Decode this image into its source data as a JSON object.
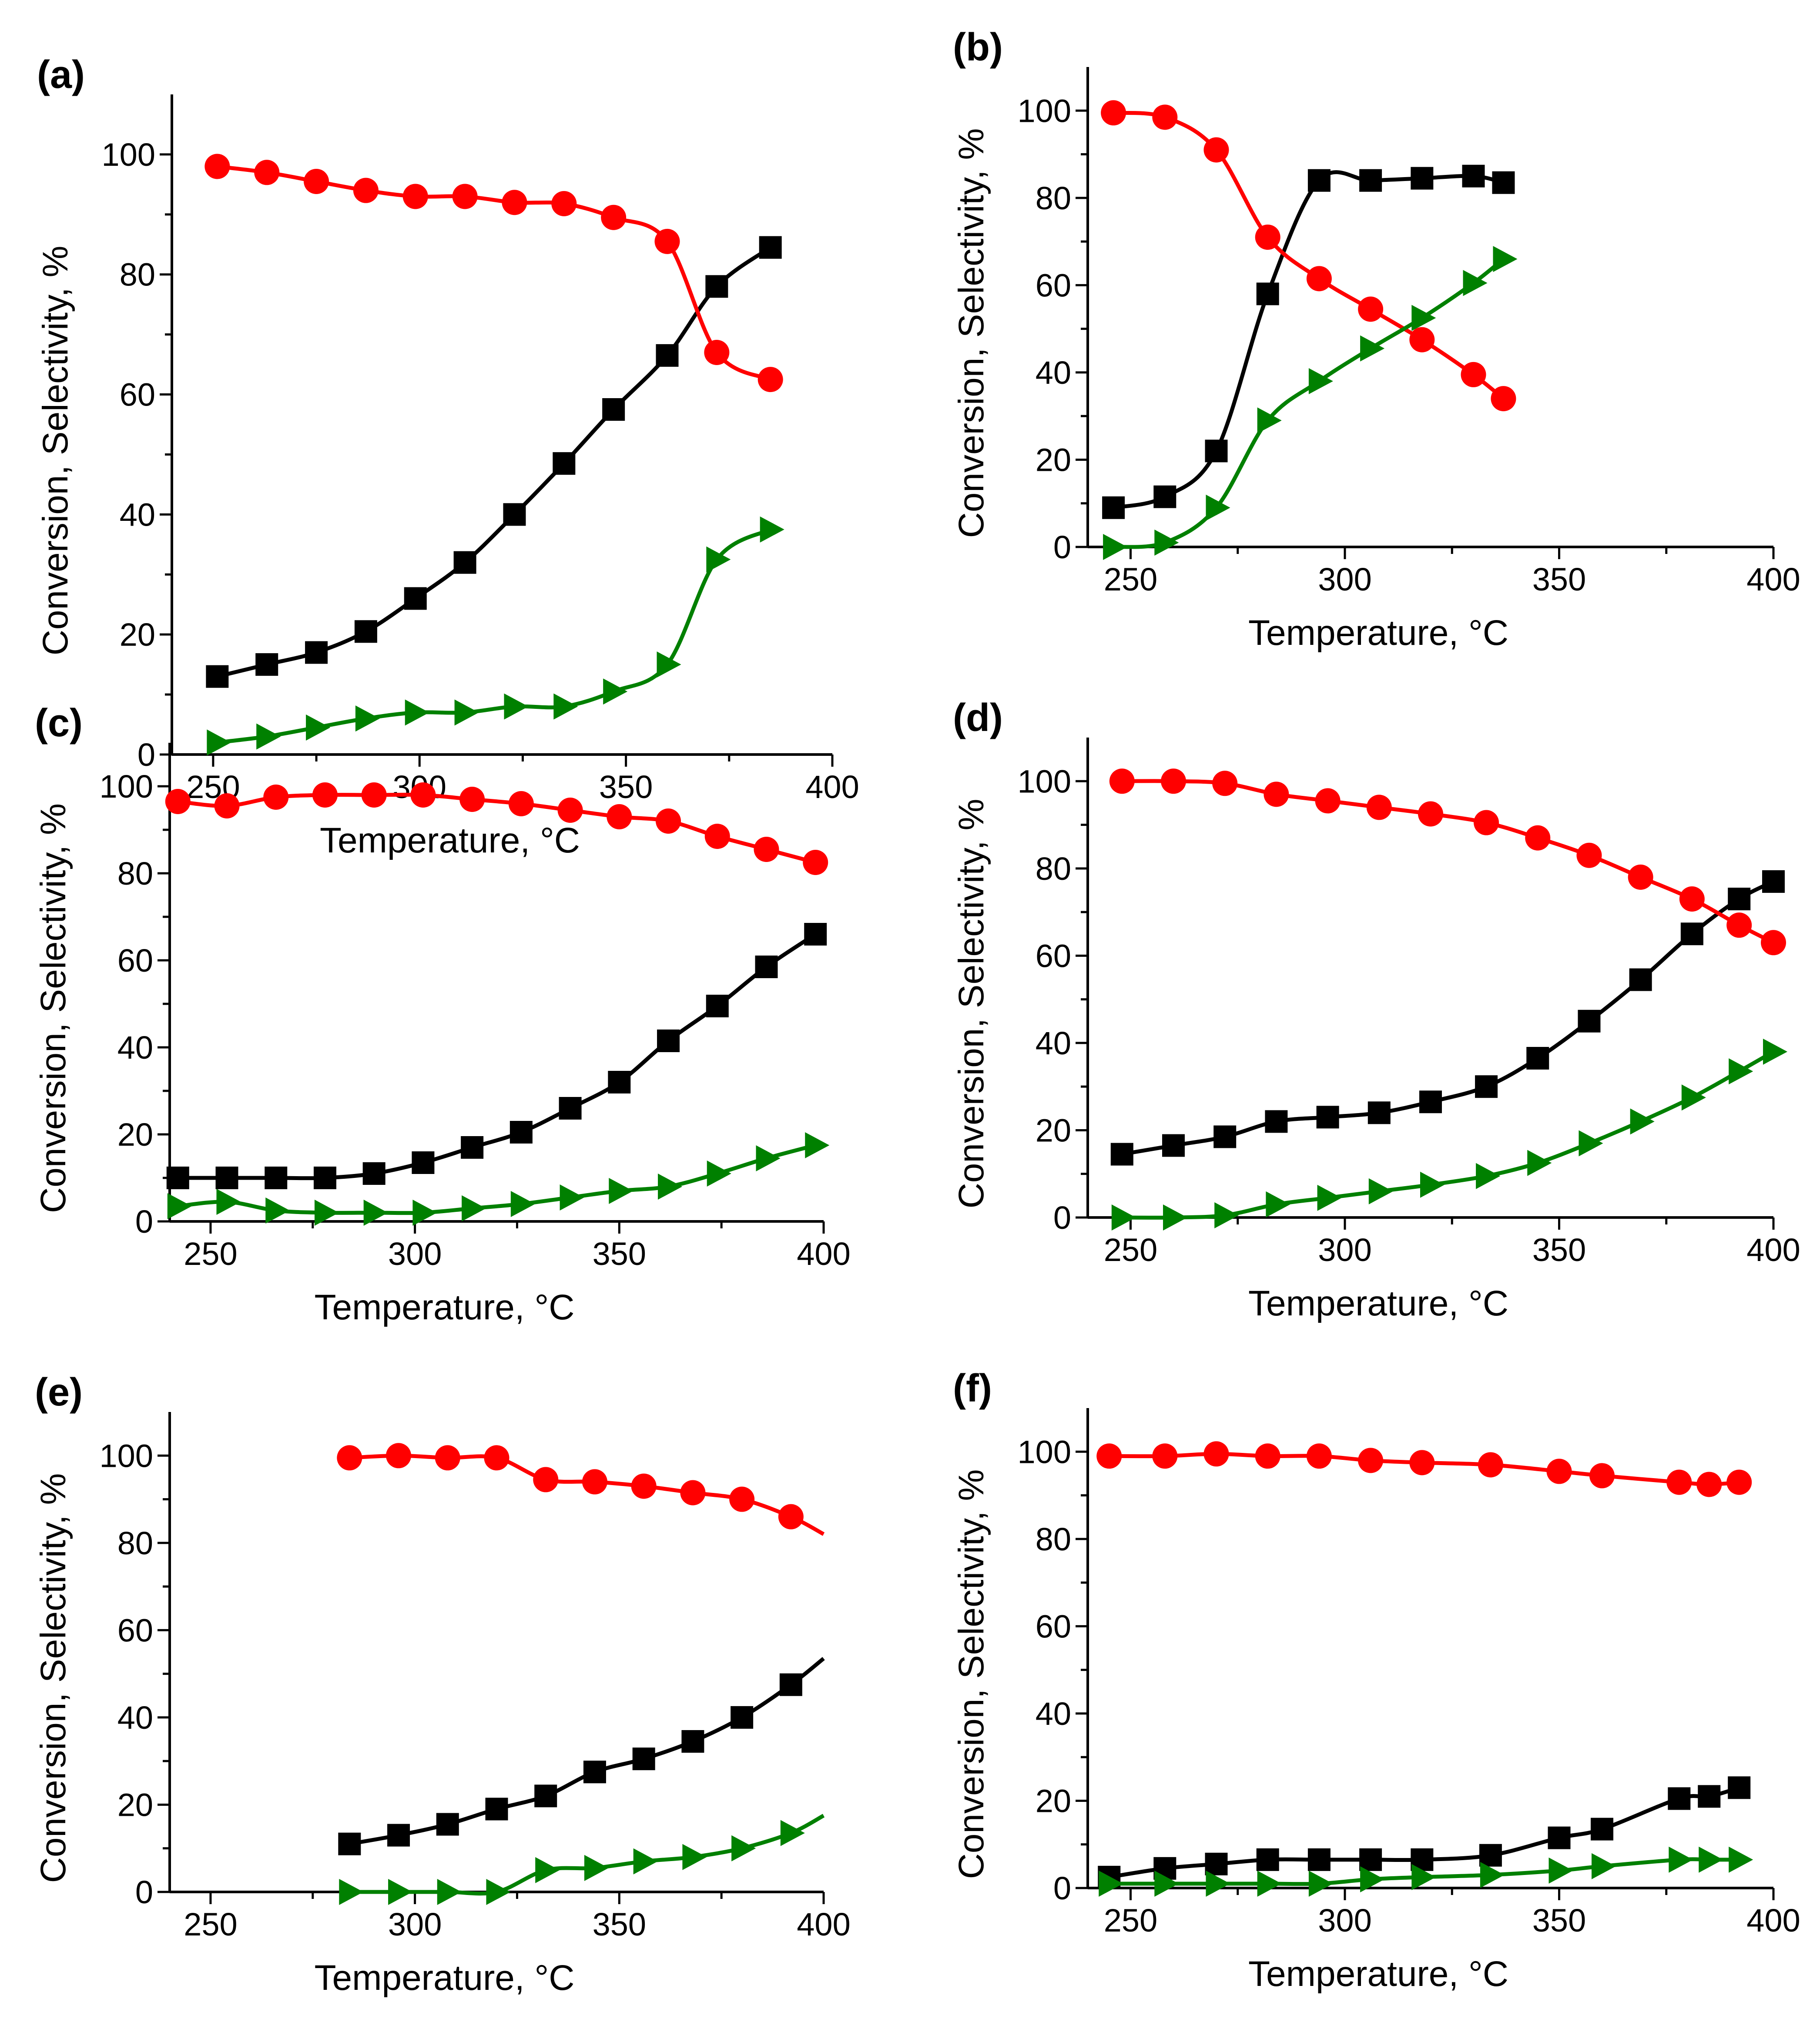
{
  "colors": {
    "conversion": "#000000",
    "selectivity": "#ff0000",
    "third": "#008000"
  },
  "chart_data": [
    {
      "type": "line",
      "label": "(a)",
      "xlabel": "Temperature, °C",
      "ylabel": "Conversion, Selectivity, %",
      "xlim": [
        240,
        400
      ],
      "ylim": [
        0,
        110
      ],
      "xticks": [
        250,
        300,
        350,
        400
      ],
      "yticks": [
        0,
        20,
        40,
        60,
        80,
        100
      ],
      "x": [
        251,
        263,
        275,
        287,
        299,
        311,
        323,
        335,
        347,
        360,
        372,
        385
      ],
      "series": [
        {
          "name": "conversion",
          "marker": "square",
          "values": [
            13,
            15,
            17,
            20.5,
            26,
            32,
            40,
            48.5,
            57.5,
            66.5,
            78,
            84.5
          ]
        },
        {
          "name": "selectivity",
          "marker": "circle",
          "values": [
            98,
            97,
            95.5,
            94,
            93,
            93,
            92,
            91.8,
            89.5,
            85.5,
            67,
            62.5
          ]
        },
        {
          "name": "third",
          "marker": "triangle-right",
          "values": [
            2,
            3,
            4.5,
            6,
            7,
            7,
            8,
            8,
            10.5,
            15,
            32.5,
            37.5
          ]
        }
      ]
    },
    {
      "type": "line",
      "label": "(b)",
      "xlabel": "Temperature, °C",
      "ylabel": "Conversion, Selectivity, %",
      "xlim": [
        240,
        400
      ],
      "ylim": [
        0,
        110
      ],
      "xticks": [
        250,
        300,
        350,
        400
      ],
      "yticks": [
        0,
        20,
        40,
        60,
        80,
        100
      ],
      "x": [
        246,
        258,
        270,
        282,
        294,
        306,
        318,
        330,
        337
      ],
      "series": [
        {
          "name": "conversion",
          "marker": "square",
          "values": [
            9,
            11.5,
            22,
            58,
            84,
            84,
            84.5,
            85,
            83.5
          ]
        },
        {
          "name": "selectivity",
          "marker": "circle",
          "values": [
            99.5,
            98.5,
            91,
            71,
            61.5,
            54.5,
            47.5,
            39.5,
            34
          ]
        },
        {
          "name": "third",
          "marker": "triangle-right",
          "values": [
            0,
            1,
            9,
            29,
            38,
            45.5,
            52.5,
            60.5,
            66
          ]
        }
      ]
    },
    {
      "type": "line",
      "label": "(c)",
      "xlabel": "Temperature, °C",
      "ylabel": "Conversion, Selectivity, %",
      "xlim": [
        240,
        400
      ],
      "ylim": [
        0,
        110
      ],
      "xticks": [
        250,
        300,
        350,
        400
      ],
      "yticks": [
        0,
        20,
        40,
        60,
        80,
        100
      ],
      "x": [
        242,
        254,
        266,
        278,
        290,
        302,
        314,
        326,
        338,
        350,
        362,
        374,
        386,
        398
      ],
      "series": [
        {
          "name": "conversion",
          "marker": "square",
          "values": [
            10,
            10,
            10,
            10,
            11,
            13.5,
            17,
            20.5,
            26,
            32,
            41.5,
            49.5,
            58.5,
            66
          ]
        },
        {
          "name": "selectivity",
          "marker": "circle",
          "values": [
            96.5,
            95.5,
            97.5,
            98,
            98,
            98,
            97,
            96,
            94.5,
            93,
            92,
            88.5,
            85.5,
            82.5
          ]
        },
        {
          "name": "third",
          "marker": "triangle-right",
          "values": [
            3.5,
            4.5,
            2.5,
            2,
            2,
            2,
            3,
            4,
            5.5,
            7,
            8,
            11,
            14.5,
            17.5
          ]
        }
      ]
    },
    {
      "type": "line",
      "label": "(d)",
      "xlabel": "Temperature, °C",
      "ylabel": "Conversion, Selectivity, %",
      "xlim": [
        240,
        400
      ],
      "ylim": [
        0,
        110
      ],
      "xticks": [
        250,
        300,
        350,
        400
      ],
      "yticks": [
        0,
        20,
        40,
        60,
        80,
        100
      ],
      "x": [
        248,
        260,
        272,
        284,
        296,
        308,
        320,
        333,
        345,
        357,
        369,
        381,
        392,
        400
      ],
      "series": [
        {
          "name": "conversion",
          "marker": "square",
          "values": [
            14.5,
            16.5,
            18.5,
            22,
            23,
            24,
            26.5,
            30,
            36.5,
            45,
            54.5,
            65,
            73,
            77
          ]
        },
        {
          "name": "selectivity",
          "marker": "circle",
          "values": [
            100,
            100,
            99.5,
            97,
            95.5,
            94,
            92.5,
            90.5,
            87,
            83,
            78,
            73,
            67,
            63
          ]
        },
        {
          "name": "third",
          "marker": "triangle-right",
          "values": [
            0,
            0,
            0.5,
            3,
            4.5,
            6,
            7.5,
            9.5,
            12.5,
            17,
            22,
            27.5,
            33.5,
            38
          ]
        }
      ]
    },
    {
      "type": "line",
      "label": "(e)",
      "xlabel": "Temperature, °C",
      "ylabel": "Conversion, Selectivity, %",
      "xlim": [
        240,
        400
      ],
      "ylim": [
        0,
        110
      ],
      "xticks": [
        250,
        300,
        350,
        400
      ],
      "yticks": [
        0,
        20,
        40,
        60,
        80,
        100
      ],
      "x": [
        284,
        296,
        308,
        320,
        332,
        344,
        356,
        368,
        380,
        392
      ],
      "series": [
        {
          "name": "conversion",
          "marker": "square",
          "values": [
            11,
            13,
            15.5,
            19,
            22,
            27.5,
            30.5,
            34.5,
            40,
            47.5
          ],
          "line_end": [
            400,
            53.5
          ]
        },
        {
          "name": "selectivity",
          "marker": "circle",
          "values": [
            99.5,
            100,
            99.5,
            99.5,
            94.5,
            94,
            93,
            91.5,
            90,
            86
          ],
          "line_end": [
            400,
            82
          ]
        },
        {
          "name": "third",
          "marker": "triangle-right",
          "values": [
            0,
            0,
            0,
            0,
            5,
            5.5,
            7,
            8,
            10,
            13.5
          ],
          "line_end": [
            400,
            17.5
          ]
        }
      ]
    },
    {
      "type": "line",
      "label": "(f)",
      "xlabel": "Temperature, °C",
      "ylabel": "Conversion, Selectivity, %",
      "xlim": [
        240,
        400
      ],
      "ylim": [
        0,
        110
      ],
      "xticks": [
        250,
        300,
        350,
        400
      ],
      "yticks": [
        0,
        20,
        40,
        60,
        80,
        100
      ],
      "x": [
        245,
        258,
        270,
        282,
        294,
        306,
        318,
        334,
        350,
        360,
        378,
        385,
        392
      ],
      "series": [
        {
          "name": "conversion",
          "marker": "square",
          "values": [
            2.5,
            4.5,
            5.5,
            6.5,
            6.5,
            6.5,
            6.5,
            7.5,
            11.5,
            13.5,
            20.5,
            21,
            23
          ]
        },
        {
          "name": "selectivity",
          "marker": "circle",
          "values": [
            99,
            99,
            99.5,
            99,
            99,
            98,
            97.5,
            97,
            95.5,
            94.5,
            93,
            92.5,
            93
          ]
        },
        {
          "name": "third",
          "marker": "triangle-right",
          "values": [
            1,
            1,
            1,
            1,
            1,
            2,
            2.5,
            3,
            4,
            5,
            6.5,
            6.5,
            6.5
          ]
        }
      ]
    }
  ]
}
